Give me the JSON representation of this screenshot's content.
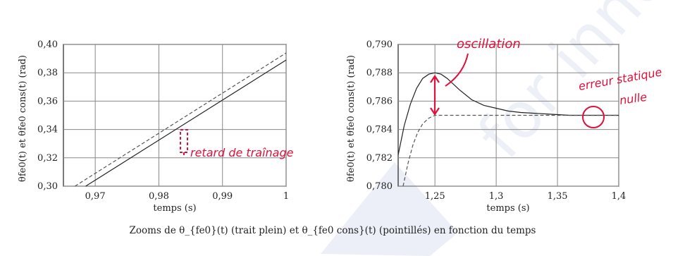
{
  "caption": "Zooms de θ_{fe0}(t) (trait plein) et θ_{fe0 cons}(t) (pointillés) en fonction du temps",
  "colors": {
    "annotation": "#e0103a",
    "solid": "#222222",
    "dashed": "#555555",
    "grid": "#888888"
  },
  "chart_data": [
    {
      "type": "line",
      "xlabel": "temps (s)",
      "ylabel": "θfe0(t) et θfe0 cons(t) (rad)",
      "xlim": [
        0.965,
        1.0
      ],
      "ylim": [
        0.3,
        0.4
      ],
      "x_ticks": [
        "0,97",
        "0,98",
        "0,99",
        "1"
      ],
      "x_tick_values": [
        0.97,
        0.98,
        0.99,
        1.0
      ],
      "y_ticks": [
        "0,30",
        "0,32",
        "0,34",
        "0,36",
        "0,38",
        "0,40"
      ],
      "y_tick_values": [
        0.3,
        0.32,
        0.34,
        0.36,
        0.38,
        0.4
      ],
      "grid": true,
      "series": [
        {
          "style": "solid",
          "x": [
            0.9685,
            1.0
          ],
          "y": [
            0.3,
            0.389
          ]
        },
        {
          "style": "dashed",
          "x": [
            0.9668,
            1.0
          ],
          "y": [
            0.3,
            0.394
          ]
        }
      ],
      "annotations": [
        {
          "text": "retard de traînage",
          "x": 0.984,
          "y": 0.324
        }
      ]
    },
    {
      "type": "line",
      "xlabel": "temps (s)",
      "ylabel": "θfe0(t) et θfe0 cons(t) (rad)",
      "xlim": [
        1.22,
        1.4
      ],
      "ylim": [
        0.78,
        0.79
      ],
      "x_ticks": [
        "1,25",
        "1,3",
        "1,35",
        "1,4"
      ],
      "x_tick_values": [
        1.25,
        1.3,
        1.35,
        1.4
      ],
      "y_ticks": [
        "0,780",
        "0,782",
        "0,784",
        "0,786",
        "0,788",
        "0,790"
      ],
      "y_tick_values": [
        0.78,
        0.782,
        0.784,
        0.786,
        0.788,
        0.79
      ],
      "grid": true,
      "series": [
        {
          "style": "solid",
          "x": [
            1.22,
            1.225,
            1.23,
            1.235,
            1.24,
            1.245,
            1.25,
            1.255,
            1.26,
            1.27,
            1.28,
            1.29,
            1.3,
            1.31,
            1.32,
            1.34,
            1.36,
            1.38,
            1.4
          ],
          "y": [
            0.7822,
            0.7843,
            0.7858,
            0.7869,
            0.7876,
            0.7879,
            0.788,
            0.7879,
            0.7876,
            0.7868,
            0.7861,
            0.7857,
            0.7855,
            0.7853,
            0.7852,
            0.7851,
            0.785,
            0.785,
            0.785
          ]
        },
        {
          "style": "dashed",
          "x": [
            1.224,
            1.228,
            1.232,
            1.236,
            1.24,
            1.245,
            1.25,
            1.26,
            1.3,
            1.35,
            1.4
          ],
          "y": [
            0.78,
            0.7816,
            0.7829,
            0.7838,
            0.7844,
            0.7848,
            0.785,
            0.785,
            0.785,
            0.785,
            0.785
          ]
        }
      ],
      "annotations": [
        {
          "text": "oscillation"
        },
        {
          "text": "erreur statique"
        },
        {
          "text": "nulle"
        }
      ]
    }
  ],
  "watermark": "for inno"
}
